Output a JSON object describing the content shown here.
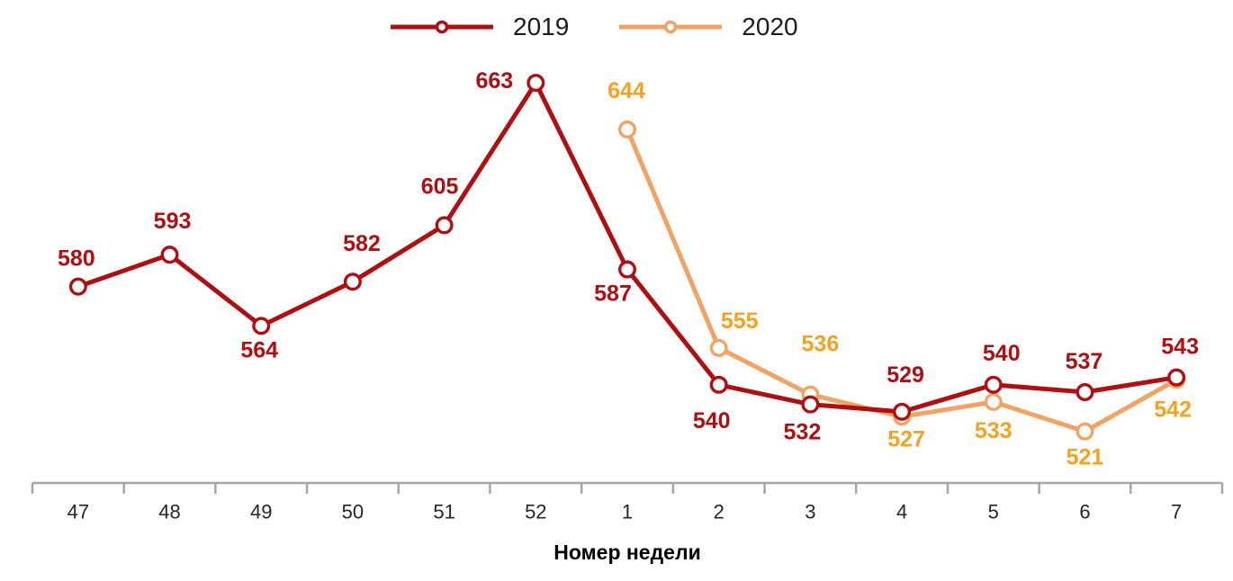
{
  "chart_data": {
    "type": "line",
    "categories": [
      "47",
      "48",
      "49",
      "50",
      "51",
      "52",
      "1",
      "2",
      "3",
      "4",
      "5",
      "6",
      "7"
    ],
    "xlabel": "Номер недели",
    "ylabel": "",
    "ylim": [
      500,
      670
    ],
    "grid": false,
    "legend_position": "top-center",
    "axis_color": "#A6A6A6",
    "tick_label_color": "#262626",
    "background_color": "#FFFFFF",
    "series": [
      {
        "name": "2019",
        "color": "#B40D10",
        "label_color": "#B40D10",
        "start_index": 0,
        "values": [
          580,
          593,
          564,
          582,
          605,
          663,
          587,
          540,
          532,
          529,
          540,
          537,
          543
        ],
        "label_offsets": [
          [
            -2,
            -31
          ],
          [
            3,
            -37
          ],
          [
            -2,
            27
          ],
          [
            10,
            -42
          ],
          [
            -5,
            -43
          ],
          [
            -46,
            -2
          ],
          [
            -16,
            27
          ],
          [
            -8,
            40
          ],
          [
            -9,
            31
          ],
          [
            4,
            -41
          ],
          [
            9,
            -35
          ],
          [
            -1,
            -34
          ],
          [
            4,
            -34
          ]
        ]
      },
      {
        "name": "2020",
        "color": "#F2A361",
        "label_color": "#F8A11C",
        "start_index": 6,
        "values": [
          644,
          555,
          536,
          527,
          533,
          521,
          542
        ],
        "label_offsets": [
          [
            -1,
            -43
          ],
          [
            23,
            -30
          ],
          [
            11,
            -56
          ],
          [
            5,
            25
          ],
          [
            0,
            32
          ],
          [
            0,
            29
          ],
          [
            -4,
            33
          ]
        ]
      }
    ]
  }
}
